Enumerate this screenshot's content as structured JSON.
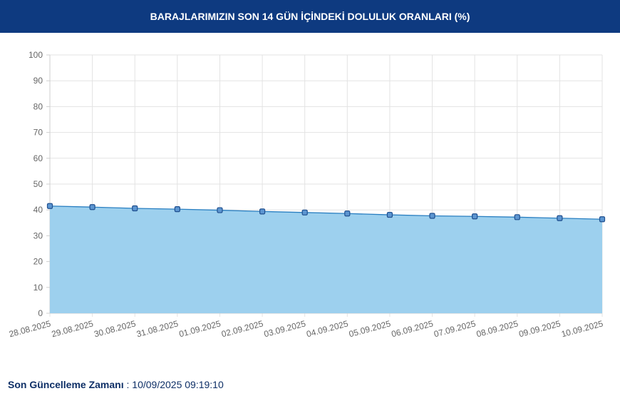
{
  "header": {
    "title": "BARAJLARIMIZIN SON 14 GÜN İÇİNDEKİ DOLULUK ORANLARI (%)"
  },
  "colors": {
    "header_bg": "#0e3a80",
    "line": "#2a7fc1",
    "fill": "#9dd0ee",
    "point_fill": "#5d96d1",
    "point_stroke": "#1f4f8e"
  },
  "chart_data": {
    "type": "area",
    "categories": [
      "28.08.2025",
      "29.08.2025",
      "30.08.2025",
      "31.08.2025",
      "01.09.2025",
      "02.09.2025",
      "03.09.2025",
      "04.09.2025",
      "05.09.2025",
      "06.09.2025",
      "07.09.2025",
      "08.09.2025",
      "09.09.2025",
      "10.09.2025"
    ],
    "series": [
      {
        "values": [
          41.5,
          41.1,
          40.6,
          40.3,
          39.9,
          39.4,
          39.0,
          38.6,
          38.1,
          37.7,
          37.5,
          37.2,
          36.8,
          36.4
        ]
      }
    ],
    "ylim": [
      0,
      100
    ],
    "yticks": [
      "0",
      "10",
      "20",
      "30",
      "40",
      "50",
      "60",
      "70",
      "80",
      "90",
      "100"
    ],
    "grid": true
  },
  "footer": {
    "label": "Son Güncelleme Zamanı",
    "separator": " : ",
    "value": "10/09/2025 09:19:10"
  }
}
